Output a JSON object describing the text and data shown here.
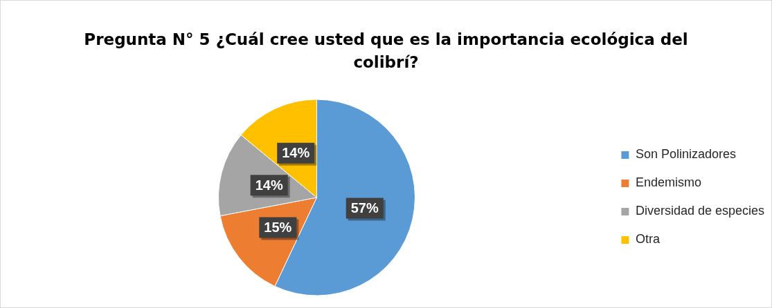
{
  "chart_data": {
    "type": "pie",
    "title": "Pregunta N° 5 ¿Cuál cree usted que es la importancia ecológica del colibrí?",
    "categories": [
      "Son Polinizadores",
      "Endemismo",
      "Diversidad de especies",
      "Otra"
    ],
    "values": [
      57,
      15,
      14,
      14
    ],
    "value_labels": [
      "57%",
      "15%",
      "14%",
      "14%"
    ],
    "colors": [
      "#5b9bd5",
      "#ed7d31",
      "#a5a5a5",
      "#ffc000"
    ],
    "legend": "right"
  }
}
